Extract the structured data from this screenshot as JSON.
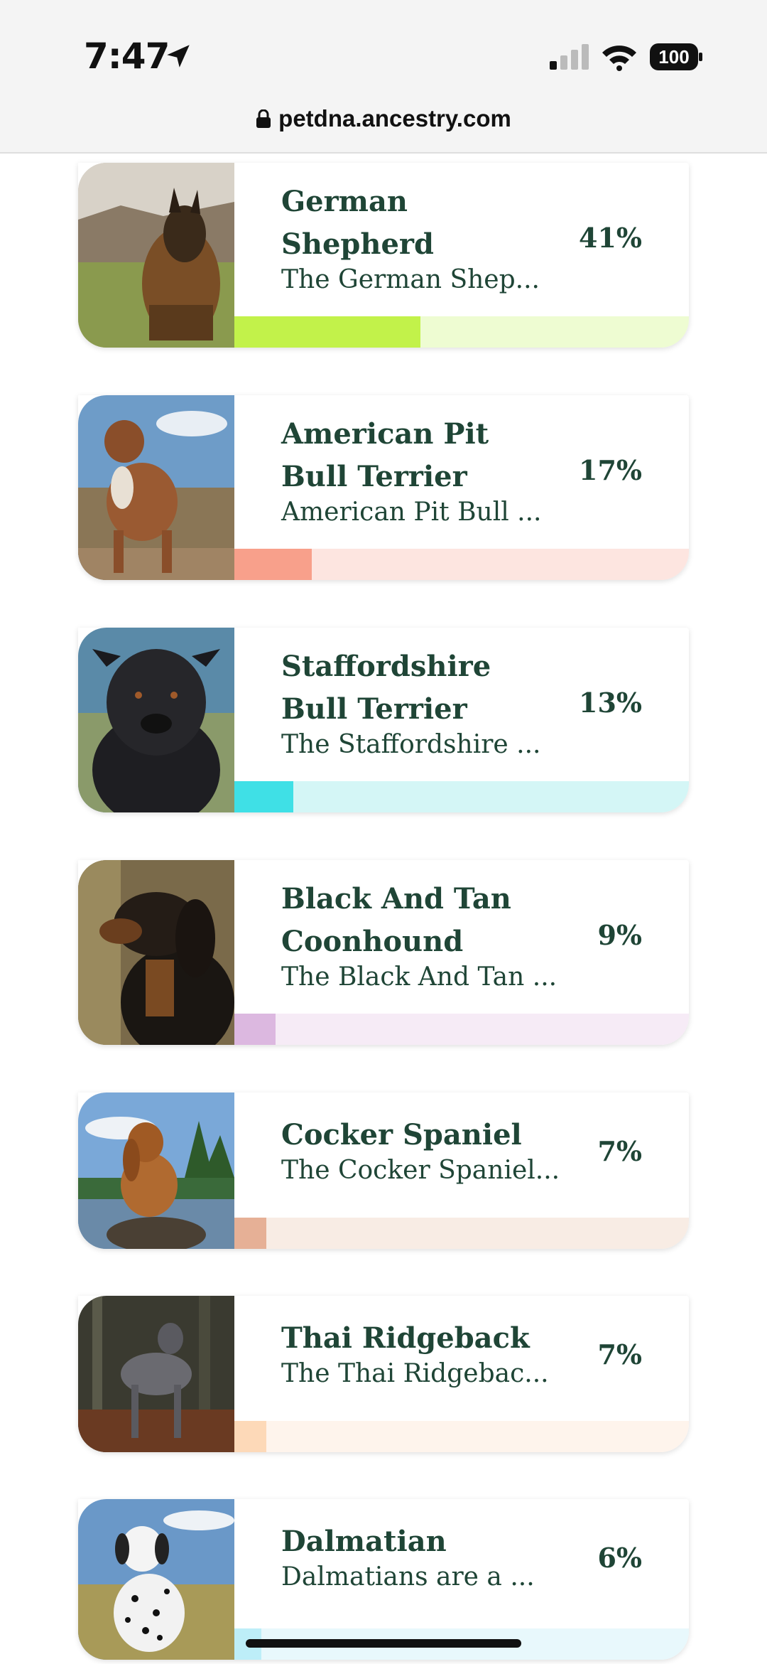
{
  "status": {
    "time": "7:47",
    "battery": "100"
  },
  "url": "petdna.ancestry.com",
  "breeds": [
    {
      "name_line1": "German",
      "name_line2": "Shepherd",
      "desc": "The German Shep...",
      "percent": "41%",
      "bar_color": "#c2f24a",
      "track_color": "#eefcd2"
    },
    {
      "name_line1": "American Pit",
      "name_line2": "Bull Terrier",
      "desc": "American Pit Bull ...",
      "percent": "17%",
      "bar_color": "#f8a08b",
      "track_color": "#fde5e0"
    },
    {
      "name_line1": "Staffordshire",
      "name_line2": "Bull Terrier",
      "desc": "The Staffordshire ...",
      "percent": "13%",
      "bar_color": "#3fe0e6",
      "track_color": "#d4f6f6"
    },
    {
      "name_line1": "Black And Tan",
      "name_line2": "Coonhound",
      "desc": "The Black And Tan ...",
      "percent": "9%",
      "bar_color": "#dcb8e0",
      "track_color": "#f6ebf6"
    },
    {
      "name_line1": "Cocker Spaniel",
      "name_line2": "",
      "desc": "The Cocker Spaniel...",
      "percent": "7%",
      "bar_color": "#e6b096",
      "track_color": "#f8ece4"
    },
    {
      "name_line1": "Thai Ridgeback",
      "name_line2": "",
      "desc": "The Thai Ridgebac...",
      "percent": "7%",
      "bar_color": "#fdd9b8",
      "track_color": "#fef4ec"
    },
    {
      "name_line1": "Dalmatian",
      "name_line2": "",
      "desc": "Dalmatians are a ...",
      "percent": "6%",
      "bar_color": "#bdeef8",
      "track_color": "#e8f8fc"
    }
  ]
}
